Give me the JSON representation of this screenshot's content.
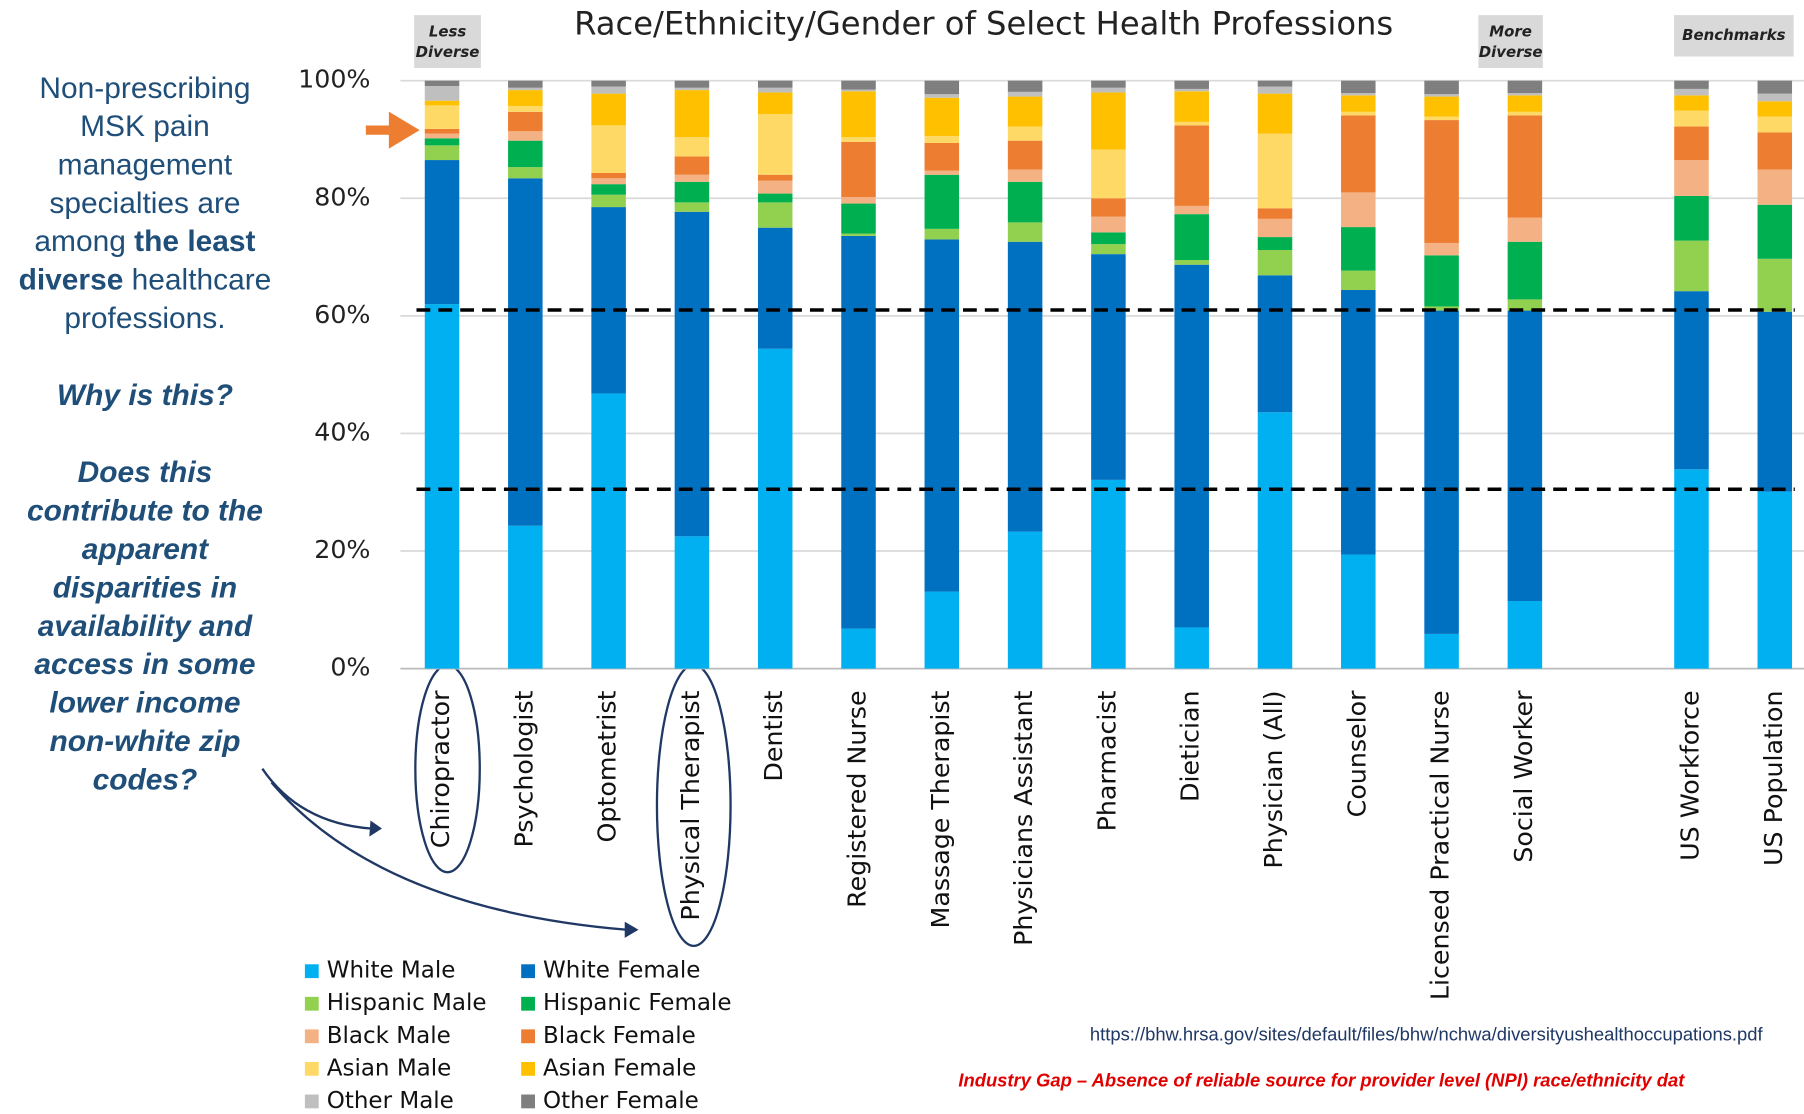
{
  "chart_data": {
    "type": "stacked_bar",
    "title": "Race/Ethnicity/Gender of Select Health Professions",
    "categories": [
      "Chiropractor",
      "Psychologist",
      "Optometrist",
      "Physical Therapist",
      "Dentist",
      "Registered Nurse",
      "Massage Therapist",
      "Physicians Assistant",
      "Pharmacist",
      "Dietician",
      "Physician (All)",
      "Counselor",
      "Licensed Practical Nurse",
      "Social Worker",
      null,
      "US Workforce",
      "US Population"
    ],
    "series": [
      {
        "name": "White Male",
        "color": "#00b0f0",
        "values": [
          62,
          24.3,
          46.8,
          22.5,
          54.4,
          6.8,
          13.1,
          23.3,
          32.1,
          7,
          43.6,
          19.4,
          5.9,
          11.5,
          null,
          33.9,
          30.1
        ]
      },
      {
        "name": "White Female",
        "color": "#0070c0",
        "values": [
          24.5,
          59.1,
          31.7,
          55.2,
          20.6,
          66.8,
          59.9,
          49.3,
          38.4,
          61.7,
          23.3,
          45,
          55,
          49.4,
          null,
          30.3,
          30.6
        ]
      },
      {
        "name": "Hispanic Male",
        "color": "#92d050",
        "values": [
          2.5,
          1.9,
          2.1,
          1.6,
          4.3,
          0.4,
          1.8,
          3.3,
          1.7,
          0.8,
          4.3,
          3.3,
          0.7,
          1.9,
          null,
          8.6,
          9
        ]
      },
      {
        "name": "Hispanic Female",
        "color": "#00b050",
        "values": [
          1.2,
          4.5,
          1.8,
          3.5,
          1.5,
          5.1,
          9.2,
          6.9,
          2,
          7.8,
          2.2,
          7.4,
          8.7,
          9.8,
          null,
          7.6,
          9.2
        ]
      },
      {
        "name": "Black Male",
        "color": "#f4b183",
        "values": [
          0.8,
          1.6,
          1,
          1.2,
          2.2,
          1.1,
          0.7,
          2.1,
          2.7,
          1.4,
          3.1,
          5.9,
          2.1,
          4.1,
          null,
          6.1,
          6
        ]
      },
      {
        "name": "Black Female",
        "color": "#ed7d31",
        "values": [
          0.8,
          3.3,
          0.9,
          3.1,
          1,
          9.4,
          4.7,
          4.9,
          3.1,
          13.7,
          1.8,
          13.1,
          20.9,
          17.4,
          null,
          5.7,
          6.3
        ]
      },
      {
        "name": "Asian Male",
        "color": "#ffd966",
        "values": [
          4,
          1,
          8.1,
          3.3,
          10.3,
          0.8,
          1.2,
          2.4,
          8.3,
          0.6,
          12.7,
          0.6,
          0.6,
          0.6,
          null,
          2.7,
          2.7
        ]
      },
      {
        "name": "Asian Female",
        "color": "#ffc000",
        "values": [
          0.8,
          2.7,
          5.4,
          8,
          3.7,
          7.8,
          6.5,
          5.1,
          9.7,
          5.2,
          6.8,
          2.8,
          3.4,
          2.8,
          null,
          2.6,
          2.6
        ]
      },
      {
        "name": "Other Male",
        "color": "#bfbfbf",
        "values": [
          2.5,
          0.4,
          1.2,
          0.4,
          0.8,
          0.3,
          0.6,
          0.8,
          0.8,
          0.4,
          1.2,
          0.4,
          0.4,
          0.4,
          null,
          1.1,
          1.3
        ]
      },
      {
        "name": "Other Female",
        "color": "#7f7f7f",
        "values": [
          0.9,
          1.2,
          1,
          1.2,
          1.2,
          1.5,
          2.3,
          1.9,
          1.2,
          1.4,
          1,
          2.1,
          2.3,
          2.1,
          null,
          1.4,
          2.2
        ]
      }
    ],
    "ylim": [
      0,
      100
    ],
    "yticks": [
      {
        "value": 0,
        "label": "0%"
      },
      {
        "value": 20,
        "label": "20%"
      },
      {
        "value": 40,
        "label": "40%"
      },
      {
        "value": 60,
        "label": "60%"
      },
      {
        "value": 80,
        "label": "80%"
      },
      {
        "value": 100,
        "label": "100%"
      }
    ],
    "grid": true,
    "reference_lines": [
      61,
      30.5
    ],
    "header_labels": [
      {
        "lines": [
          "Less",
          "Diverse"
        ]
      },
      {
        "lines": [
          "More",
          "Diverse"
        ]
      },
      {
        "lines": [
          "Benchmarks"
        ]
      }
    ],
    "source": "https://bhw.hrsa.gov/sites/default/files/bhw/nchwa/diversityushealthoccupations.pdf",
    "footnote": "Industry Gap – Absence of reliable source for provider level (NPI) race/ethnicity dat",
    "side_note": [
      [
        {
          "text": "Non-prescribing",
          "bold": false
        }
      ],
      [
        {
          "text": "MSK  pain",
          "bold": false
        }
      ],
      [
        {
          "text": "management",
          "bold": false
        }
      ],
      [
        {
          "text": "specialties are",
          "bold": false
        }
      ],
      [
        {
          "text": "among ",
          "bold": false
        },
        {
          "text": "the least",
          "bold": true
        }
      ],
      [
        {
          "text": "diverse",
          "bold": true
        },
        {
          "text": " healthcare",
          "bold": false
        }
      ],
      [
        {
          "text": "professions.",
          "bold": false
        }
      ]
    ],
    "questions": [
      "Why is this?",
      "Does this",
      "contribute to the",
      "apparent",
      "disparities in",
      "availability and",
      "access in some",
      "lower income",
      "non-white zip",
      "codes?"
    ]
  }
}
